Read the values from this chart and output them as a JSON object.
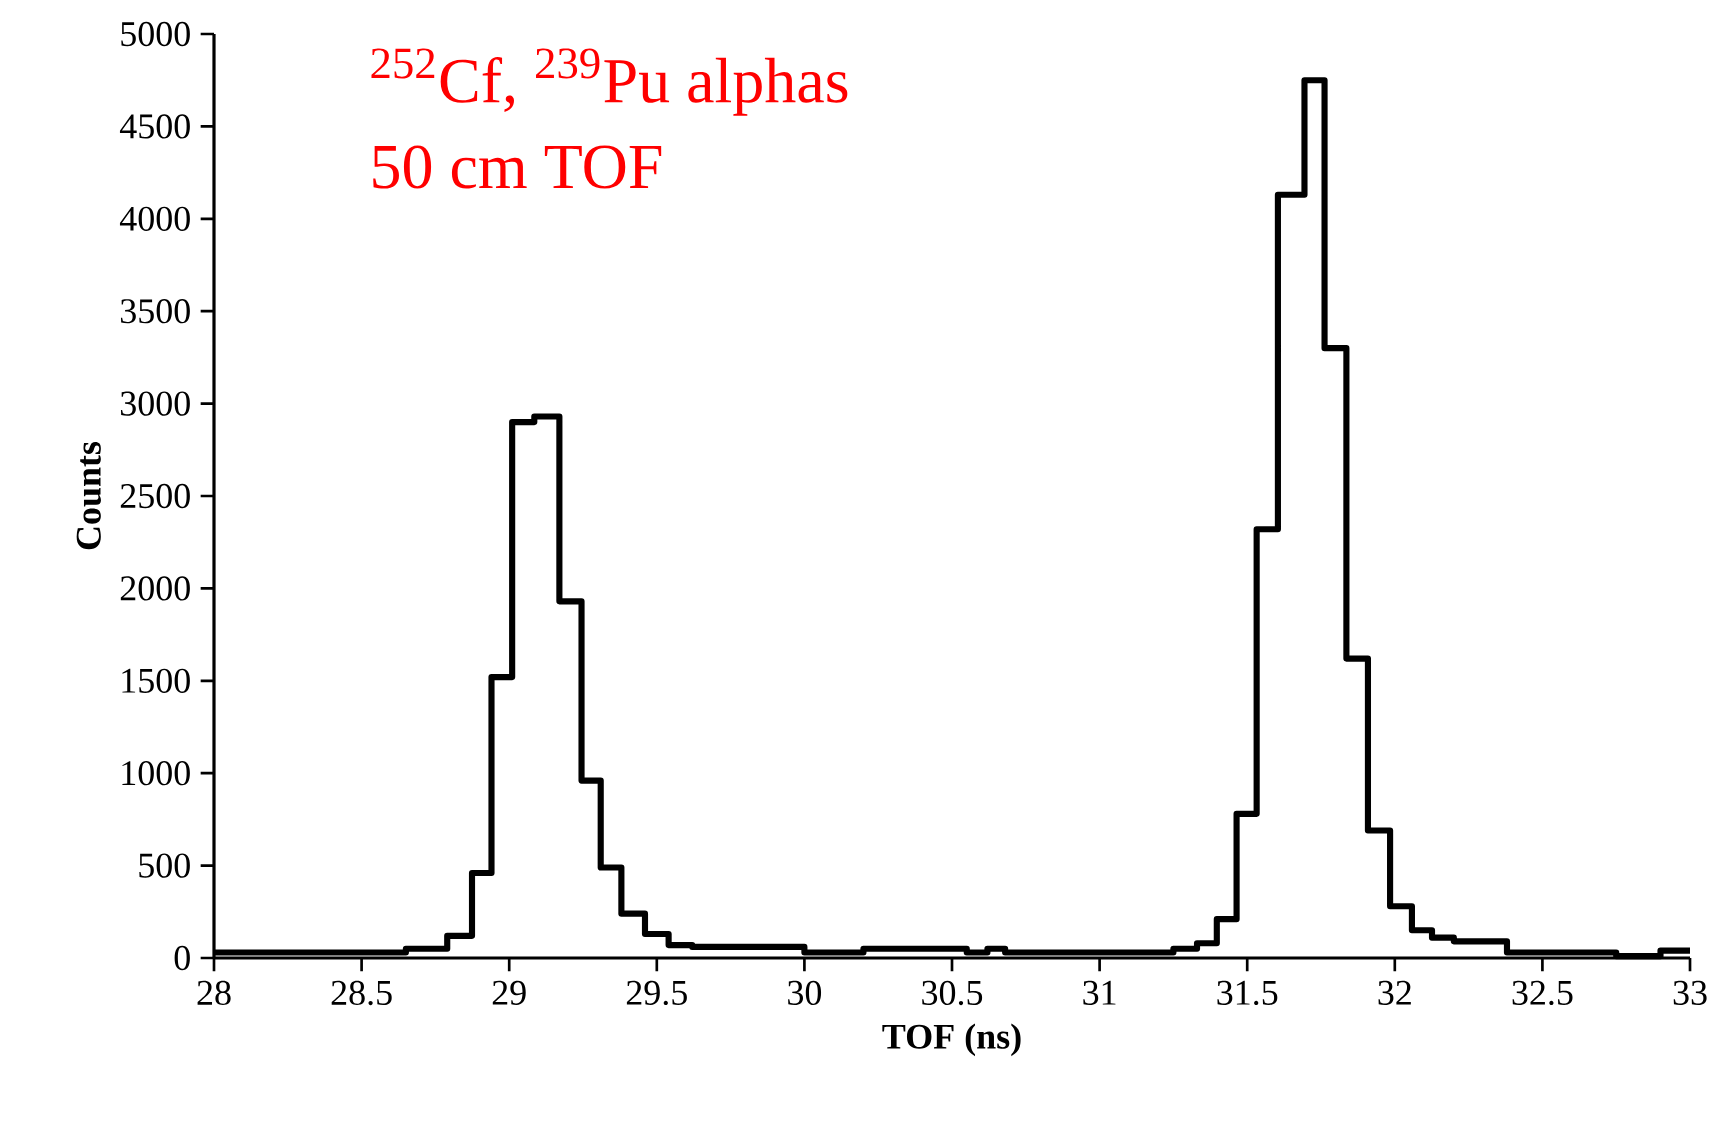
{
  "chart_data": {
    "type": "step",
    "xlabel": "TOF (ns)",
    "ylabel": "Counts",
    "annotations": [
      "$^{252}$Cf, $^{239}$Pu alphas",
      "50 cm TOF"
    ],
    "x": [
      28.0,
      28.65,
      28.79,
      28.874,
      28.94,
      29.01,
      29.085,
      29.17,
      29.245,
      29.31,
      29.38,
      29.46,
      29.54,
      29.62,
      30.0,
      30.2,
      30.55,
      30.62,
      30.68,
      31.25,
      31.33,
      31.397,
      31.464,
      31.532,
      31.604,
      31.694,
      31.762,
      31.836,
      31.909,
      31.984,
      32.058,
      32.126,
      32.2,
      32.38,
      32.75,
      32.9,
      33.0
    ],
    "values": [
      30,
      50,
      120,
      460,
      1520,
      2900,
      2930,
      1930,
      960,
      490,
      240,
      130,
      70,
      60,
      30,
      50,
      30,
      50,
      30,
      50,
      80,
      210,
      780,
      2320,
      4130,
      4750,
      3300,
      1620,
      690,
      280,
      150,
      110,
      90,
      30,
      10,
      40,
      40
    ],
    "color": "#000000",
    "marker": "none",
    "line_style": "solid",
    "grid": false,
    "xlim": [
      28,
      33
    ],
    "xticks": [
      28,
      28.5,
      29,
      29.5,
      30,
      30.5,
      31,
      31.5,
      32,
      32.5,
      33
    ],
    "ylim": [
      0,
      5000
    ],
    "yticks": [
      0,
      500,
      1000,
      1500,
      2000,
      2500,
      3000,
      3500,
      4000,
      4500,
      5000
    ]
  }
}
